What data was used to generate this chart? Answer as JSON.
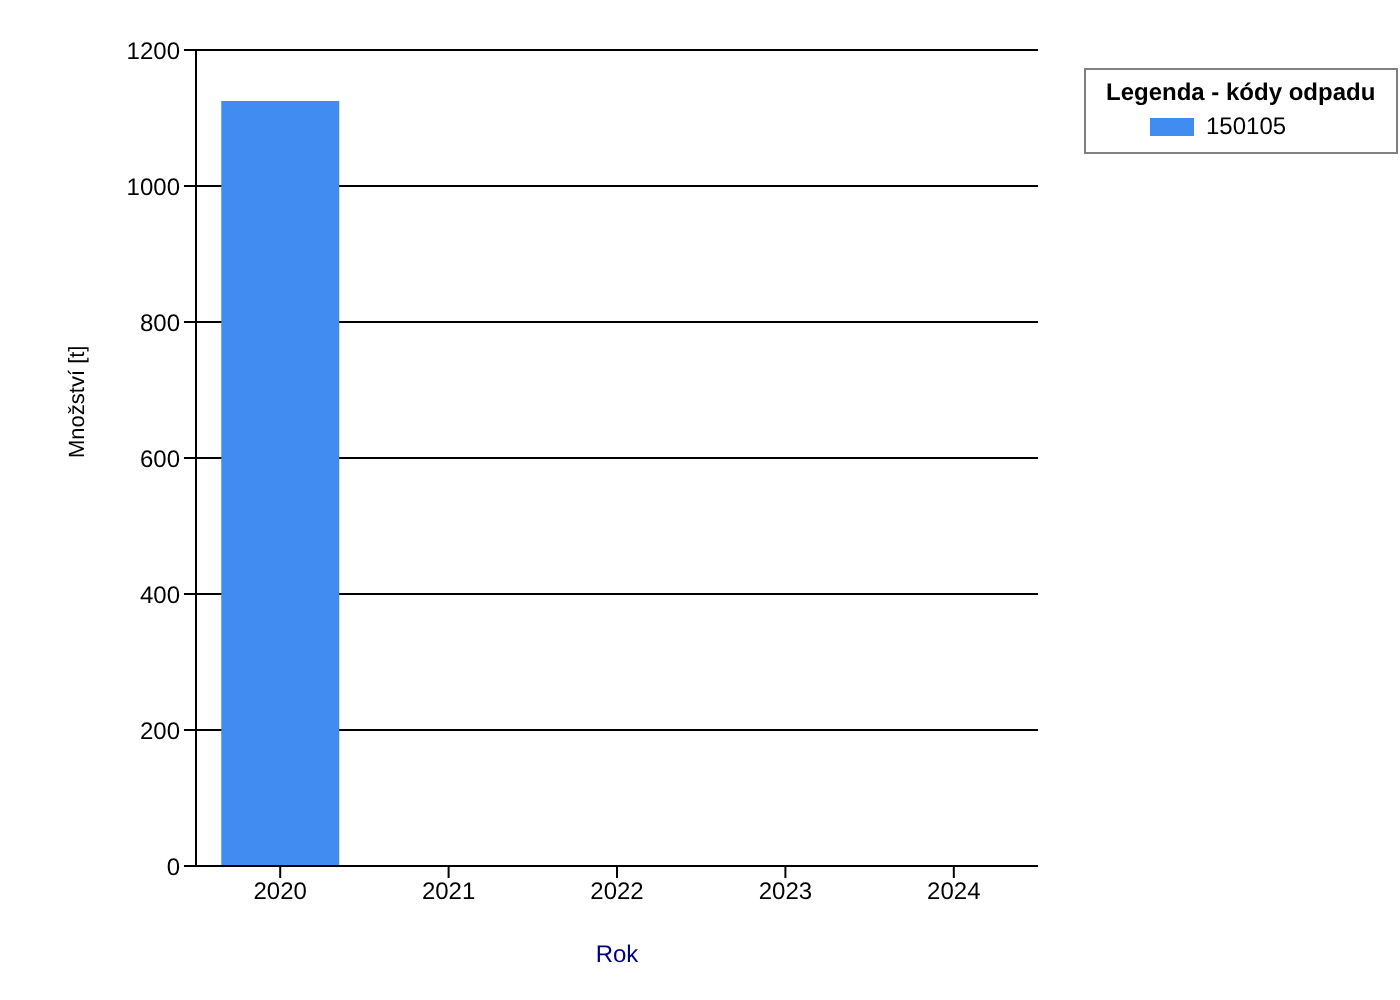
{
  "chart_data": {
    "type": "bar",
    "xlabel": "Rok",
    "ylabel": "Množství [t]",
    "legend_title": "Legenda - kódy odpadu",
    "categories": [
      "2020",
      "2021",
      "2022",
      "2023",
      "2024"
    ],
    "series": [
      {
        "name": "150105",
        "color": "#418cf0",
        "values": [
          1125,
          null,
          null,
          null,
          null
        ]
      }
    ],
    "ylim": [
      0,
      1200
    ],
    "yticks": [
      0,
      200,
      400,
      600,
      800,
      1000,
      1200
    ],
    "grid": "y",
    "legend": "top right"
  }
}
